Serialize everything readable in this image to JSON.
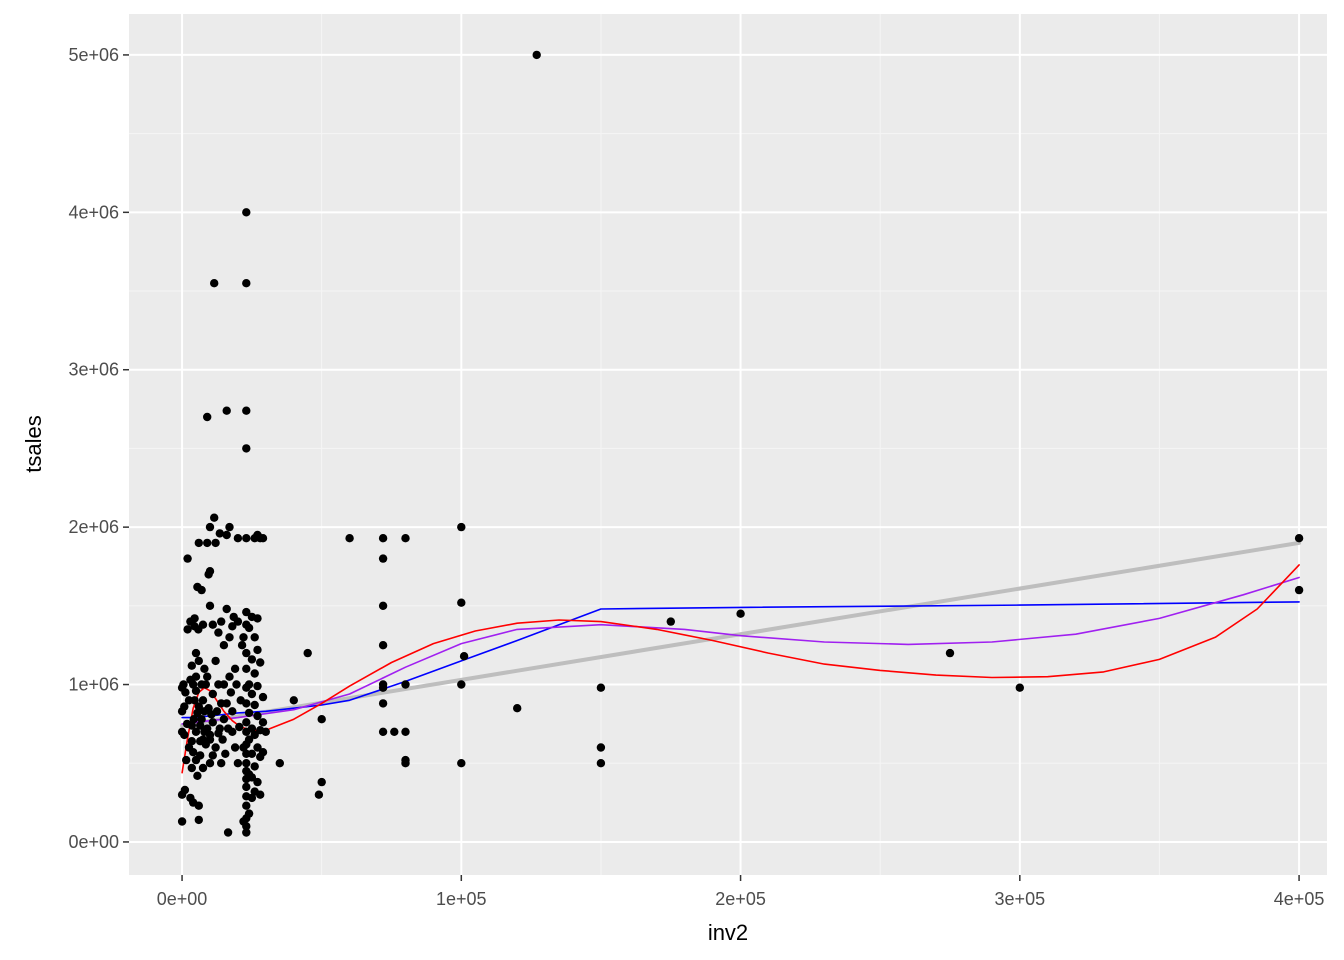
{
  "chart_data": {
    "type": "scatter",
    "title": "",
    "xlabel": "inv2",
    "ylabel": "tsales",
    "xlim": [
      -19000,
      410000
    ],
    "ylim": [
      -210000,
      5260000
    ],
    "x_ticks": [
      {
        "value": 0,
        "label": "0e+00"
      },
      {
        "value": 100000,
        "label": "1e+05"
      },
      {
        "value": 200000,
        "label": "2e+05"
      },
      {
        "value": 300000,
        "label": "3e+05"
      },
      {
        "value": 400000,
        "label": "4e+05"
      }
    ],
    "y_ticks": [
      {
        "value": 0,
        "label": "0e+00"
      },
      {
        "value": 1000000,
        "label": "1e+06"
      },
      {
        "value": 2000000,
        "label": "2e+06"
      },
      {
        "value": 3000000,
        "label": "3e+06"
      },
      {
        "value": 4000000,
        "label": "4e+06"
      },
      {
        "value": 5000000,
        "label": "5e+06"
      }
    ],
    "grid": true,
    "colors": {
      "panel_background": "#ebebeb",
      "grid_major": "#ffffff",
      "grid_minor": "#f5f5f5",
      "points": "#000000",
      "tick_text": "#4d4d4d"
    },
    "points": [
      [
        0,
        130000
      ],
      [
        0,
        300000
      ],
      [
        0,
        700000
      ],
      [
        0,
        830000
      ],
      [
        0,
        980000
      ],
      [
        500,
        1000000
      ],
      [
        800,
        680000
      ],
      [
        800,
        860000
      ],
      [
        1000,
        330000
      ],
      [
        1200,
        950000
      ],
      [
        1500,
        520000
      ],
      [
        1800,
        750000
      ],
      [
        2000,
        1800000
      ],
      [
        2000,
        1350000
      ],
      [
        2500,
        600000
      ],
      [
        2500,
        900000
      ],
      [
        3000,
        280000
      ],
      [
        3000,
        1030000
      ],
      [
        3000,
        1400000
      ],
      [
        3500,
        470000
      ],
      [
        3500,
        640000
      ],
      [
        3500,
        740000
      ],
      [
        3500,
        1120000
      ],
      [
        4000,
        250000
      ],
      [
        4000,
        570000
      ],
      [
        4000,
        1000000
      ],
      [
        4200,
        780000
      ],
      [
        4500,
        1370000
      ],
      [
        4500,
        1420000
      ],
      [
        4500,
        900000
      ],
      [
        5000,
        1200000
      ],
      [
        5000,
        520000
      ],
      [
        5000,
        700000
      ],
      [
        5000,
        960000
      ],
      [
        5000,
        1050000
      ],
      [
        5500,
        420000
      ],
      [
        5500,
        820000
      ],
      [
        5500,
        1620000
      ],
      [
        5800,
        1350000
      ],
      [
        6000,
        140000
      ],
      [
        6000,
        860000
      ],
      [
        6000,
        230000
      ],
      [
        6000,
        1900000
      ],
      [
        6000,
        1150000
      ],
      [
        6500,
        640000
      ],
      [
        6500,
        740000
      ],
      [
        6500,
        550000
      ],
      [
        7000,
        780000
      ],
      [
        7000,
        1000000
      ],
      [
        7000,
        1600000
      ],
      [
        7500,
        470000
      ],
      [
        7500,
        650000
      ],
      [
        7500,
        900000
      ],
      [
        7500,
        1380000
      ],
      [
        8000,
        700000
      ],
      [
        8000,
        830000
      ],
      [
        8000,
        1100000
      ],
      [
        8500,
        620000
      ],
      [
        8500,
        1000000
      ],
      [
        9000,
        1900000
      ],
      [
        9000,
        2700000
      ],
      [
        9000,
        1050000
      ],
      [
        9000,
        720000
      ],
      [
        9500,
        1700000
      ],
      [
        9500,
        850000
      ],
      [
        10000,
        1720000
      ],
      [
        10000,
        500000
      ],
      [
        10000,
        650000
      ],
      [
        10000,
        1500000
      ],
      [
        10000,
        2000000
      ],
      [
        10000,
        680000
      ],
      [
        10500,
        810000
      ],
      [
        11000,
        1380000
      ],
      [
        11000,
        550000
      ],
      [
        11000,
        940000
      ],
      [
        11000,
        760000
      ],
      [
        11500,
        3550000
      ],
      [
        11500,
        2060000
      ],
      [
        12000,
        1900000
      ],
      [
        12000,
        600000
      ],
      [
        12000,
        1150000
      ],
      [
        12500,
        830000
      ],
      [
        13000,
        690000
      ],
      [
        13000,
        1000000
      ],
      [
        13000,
        1330000
      ],
      [
        13500,
        720000
      ],
      [
        13500,
        1960000
      ],
      [
        14000,
        500000
      ],
      [
        14000,
        1400000
      ],
      [
        14000,
        880000
      ],
      [
        14500,
        650000
      ],
      [
        15000,
        1000000
      ],
      [
        15000,
        780000
      ],
      [
        15000,
        1250000
      ],
      [
        15500,
        560000
      ],
      [
        16000,
        2740000
      ],
      [
        16000,
        1950000
      ],
      [
        16000,
        1480000
      ],
      [
        16000,
        880000
      ],
      [
        16500,
        720000
      ],
      [
        16500,
        60000
      ],
      [
        17000,
        1050000
      ],
      [
        17000,
        2000000
      ],
      [
        17000,
        1300000
      ],
      [
        17500,
        950000
      ],
      [
        18000,
        1370000
      ],
      [
        18000,
        700000
      ],
      [
        18000,
        830000
      ],
      [
        18500,
        1430000
      ],
      [
        19000,
        600000
      ],
      [
        19000,
        1100000
      ],
      [
        19500,
        1000000
      ],
      [
        20000,
        1930000
      ],
      [
        20000,
        1400000
      ],
      [
        20000,
        500000
      ],
      [
        20500,
        730000
      ],
      [
        21000,
        900000
      ],
      [
        21500,
        1250000
      ],
      [
        22000,
        1300000
      ],
      [
        22000,
        600000
      ],
      [
        22000,
        130000
      ],
      [
        23000,
        4000000
      ],
      [
        23000,
        3550000
      ],
      [
        23000,
        2740000
      ],
      [
        23000,
        2500000
      ],
      [
        23000,
        1930000
      ],
      [
        23000,
        1460000
      ],
      [
        23000,
        1380000
      ],
      [
        23000,
        1200000
      ],
      [
        23000,
        1100000
      ],
      [
        23000,
        980000
      ],
      [
        23000,
        880000
      ],
      [
        23000,
        760000
      ],
      [
        23000,
        700000
      ],
      [
        23000,
        620000
      ],
      [
        23000,
        560000
      ],
      [
        23000,
        500000
      ],
      [
        23000,
        450000
      ],
      [
        23000,
        400000
      ],
      [
        23000,
        350000
      ],
      [
        23000,
        290000
      ],
      [
        23000,
        230000
      ],
      [
        23000,
        150000
      ],
      [
        23000,
        100000
      ],
      [
        23000,
        60000
      ],
      [
        24000,
        1360000
      ],
      [
        24000,
        1000000
      ],
      [
        24000,
        820000
      ],
      [
        24000,
        650000
      ],
      [
        24000,
        430000
      ],
      [
        24000,
        180000
      ],
      [
        25000,
        1430000
      ],
      [
        25000,
        1160000
      ],
      [
        25000,
        940000
      ],
      [
        25000,
        720000
      ],
      [
        25000,
        560000
      ],
      [
        25000,
        410000
      ],
      [
        25000,
        280000
      ],
      [
        26000,
        1930000
      ],
      [
        26000,
        1300000
      ],
      [
        26000,
        1070000
      ],
      [
        26000,
        870000
      ],
      [
        26000,
        680000
      ],
      [
        26000,
        480000
      ],
      [
        26000,
        320000
      ],
      [
        27000,
        1950000
      ],
      [
        27000,
        1420000
      ],
      [
        27000,
        1220000
      ],
      [
        27000,
        990000
      ],
      [
        27000,
        800000
      ],
      [
        27000,
        600000
      ],
      [
        27000,
        380000
      ],
      [
        28000,
        1930000
      ],
      [
        28000,
        1140000
      ],
      [
        28000,
        710000
      ],
      [
        28000,
        540000
      ],
      [
        28000,
        300000
      ],
      [
        29000,
        1930000
      ],
      [
        29000,
        920000
      ],
      [
        29000,
        760000
      ],
      [
        29000,
        570000
      ],
      [
        30000,
        700000
      ],
      [
        35000,
        500000
      ],
      [
        40000,
        900000
      ],
      [
        45000,
        1200000
      ],
      [
        49000,
        300000
      ],
      [
        50000,
        780000
      ],
      [
        50000,
        380000
      ],
      [
        60000,
        1930000
      ],
      [
        72000,
        1930000
      ],
      [
        72000,
        1800000
      ],
      [
        72000,
        1500000
      ],
      [
        72000,
        1250000
      ],
      [
        72000,
        1000000
      ],
      [
        72000,
        980000
      ],
      [
        72000,
        880000
      ],
      [
        72000,
        700000
      ],
      [
        76000,
        700000
      ],
      [
        80000,
        1930000
      ],
      [
        80000,
        700000
      ],
      [
        80000,
        500000
      ],
      [
        80000,
        520000
      ],
      [
        80000,
        1000000
      ],
      [
        100000,
        2000000
      ],
      [
        100000,
        1520000
      ],
      [
        100000,
        1000000
      ],
      [
        100000,
        500000
      ],
      [
        101000,
        1180000
      ],
      [
        120000,
        850000
      ],
      [
        127000,
        5000000
      ],
      [
        150000,
        980000
      ],
      [
        150000,
        600000
      ],
      [
        150000,
        500000
      ],
      [
        175000,
        1400000
      ],
      [
        200000,
        1450000
      ],
      [
        275000,
        1200000
      ],
      [
        300000,
        980000
      ],
      [
        400000,
        1930000
      ],
      [
        400000,
        1600000
      ]
    ],
    "fits": [
      {
        "color": "#bebebe",
        "points": [
          [
            0,
            740000
          ],
          [
            400000,
            1900000
          ]
        ]
      },
      {
        "color": "#0000ff",
        "points": [
          [
            0,
            790000
          ],
          [
            3000,
            790000
          ],
          [
            10000,
            800000
          ],
          [
            20000,
            820000
          ],
          [
            30000,
            830000
          ],
          [
            40000,
            850000
          ],
          [
            50000,
            870000
          ],
          [
            60000,
            900000
          ],
          [
            80000,
            1020000
          ],
          [
            100000,
            1150000
          ],
          [
            120000,
            1280000
          ],
          [
            150000,
            1480000
          ],
          [
            200000,
            1490000
          ],
          [
            300000,
            1505000
          ],
          [
            400000,
            1525000
          ]
        ]
      },
      {
        "color": "#a020f0",
        "points": [
          [
            0,
            750000
          ],
          [
            10000,
            770000
          ],
          [
            20000,
            790000
          ],
          [
            40000,
            840000
          ],
          [
            60000,
            940000
          ],
          [
            80000,
            1110000
          ],
          [
            100000,
            1260000
          ],
          [
            120000,
            1350000
          ],
          [
            150000,
            1380000
          ],
          [
            180000,
            1350000
          ],
          [
            200000,
            1310000
          ],
          [
            230000,
            1270000
          ],
          [
            260000,
            1255000
          ],
          [
            290000,
            1270000
          ],
          [
            320000,
            1320000
          ],
          [
            350000,
            1420000
          ],
          [
            380000,
            1570000
          ],
          [
            400000,
            1680000
          ]
        ]
      },
      {
        "color": "#ff0000",
        "points": [
          [
            0,
            440000
          ],
          [
            2000,
            660000
          ],
          [
            4000,
            850000
          ],
          [
            6000,
            950000
          ],
          [
            8000,
            980000
          ],
          [
            10000,
            960000
          ],
          [
            12000,
            910000
          ],
          [
            15000,
            830000
          ],
          [
            18000,
            770000
          ],
          [
            21000,
            730000
          ],
          [
            25000,
            710000
          ],
          [
            30000,
            710000
          ],
          [
            40000,
            780000
          ],
          [
            50000,
            880000
          ],
          [
            60000,
            990000
          ],
          [
            75000,
            1140000
          ],
          [
            90000,
            1260000
          ],
          [
            105000,
            1340000
          ],
          [
            120000,
            1390000
          ],
          [
            135000,
            1410000
          ],
          [
            150000,
            1400000
          ],
          [
            170000,
            1350000
          ],
          [
            190000,
            1280000
          ],
          [
            210000,
            1200000
          ],
          [
            230000,
            1130000
          ],
          [
            250000,
            1090000
          ],
          [
            270000,
            1060000
          ],
          [
            290000,
            1045000
          ],
          [
            310000,
            1050000
          ],
          [
            330000,
            1080000
          ],
          [
            350000,
            1160000
          ],
          [
            370000,
            1300000
          ],
          [
            385000,
            1480000
          ],
          [
            400000,
            1760000
          ]
        ]
      }
    ]
  }
}
